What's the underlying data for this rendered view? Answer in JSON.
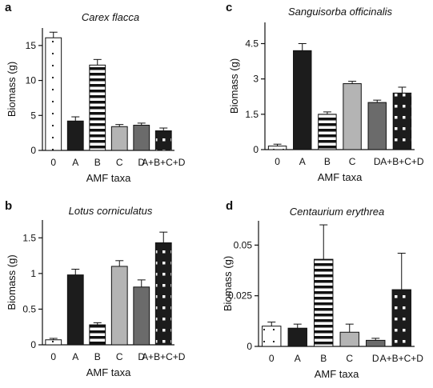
{
  "colors": {
    "control": "#ffffff",
    "A": "#1c1c1c",
    "B": "#ffffff",
    "C": "#b4b4b4",
    "D": "#6b6b6b",
    "ABCD": "#1c1c1c",
    "stroke": "#111111"
  },
  "chart_data": [
    {
      "type": "bar",
      "panel_letter": "a",
      "title": "Carex flacca",
      "xlabel": "AMF taxa",
      "ylabel": "Biomass (g)",
      "categories": [
        "0",
        "A",
        "B",
        "C",
        "D",
        "A+B+C+D"
      ],
      "values": [
        16.1,
        4.2,
        12.2,
        3.4,
        3.6,
        2.8
      ],
      "errors": [
        0.8,
        0.6,
        0.8,
        0.3,
        0.3,
        0.4
      ],
      "yticks": [
        0,
        5,
        10,
        15
      ],
      "ytick_labels": [
        "0",
        "5",
        "10",
        "15"
      ],
      "ylim": [
        0,
        17.5
      ]
    },
    {
      "type": "bar",
      "panel_letter": "c",
      "title": "Sanguisorba officinalis",
      "xlabel": "AMF taxa",
      "ylabel": "Biomass (g)",
      "categories": [
        "0",
        "A",
        "B",
        "C",
        "D",
        "A+B+C+D"
      ],
      "values": [
        0.15,
        4.2,
        1.5,
        2.8,
        2.0,
        2.4
      ],
      "errors": [
        0.08,
        0.3,
        0.1,
        0.1,
        0.1,
        0.25
      ],
      "yticks": [
        0,
        1.5,
        3,
        4.5
      ],
      "ytick_labels": [
        "0",
        "1.5",
        "3",
        "4.5"
      ],
      "ylim": [
        0,
        5.4
      ]
    },
    {
      "type": "bar",
      "panel_letter": "b",
      "title": "Lotus corniculatus",
      "xlabel": "AMF taxa",
      "ylabel": "Biomass (g)",
      "categories": [
        "0",
        "A",
        "B",
        "C",
        "D",
        "A+B+C+D"
      ],
      "values": [
        0.07,
        0.98,
        0.28,
        1.1,
        0.81,
        1.43
      ],
      "errors": [
        0.02,
        0.08,
        0.03,
        0.08,
        0.1,
        0.15
      ],
      "yticks": [
        0,
        0.5,
        1,
        1.5
      ],
      "ytick_labels": [
        "0",
        "0.5",
        "1",
        "1.5"
      ],
      "ylim": [
        0,
        1.75
      ]
    },
    {
      "type": "bar",
      "panel_letter": "d",
      "title": "Centaurium erythrea",
      "xlabel": "AMF taxa",
      "ylabel": "Biomass (g)",
      "categories": [
        "0",
        "A",
        "B",
        "C",
        "D",
        "A+B+C+D"
      ],
      "values": [
        0.01,
        0.009,
        0.043,
        0.007,
        0.003,
        0.028
      ],
      "errors": [
        0.002,
        0.002,
        0.017,
        0.004,
        0.001,
        0.018
      ],
      "yticks": [
        0,
        0.025,
        0.05
      ],
      "ytick_labels": [
        "0",
        "0.025",
        "0.05"
      ],
      "ylim": [
        0,
        0.062
      ]
    }
  ]
}
